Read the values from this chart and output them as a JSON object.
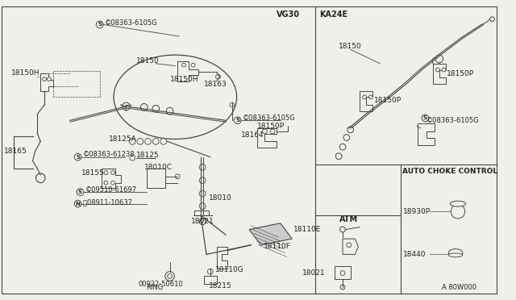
{
  "bg_color": "#f0f0eb",
  "line_color": "#444444",
  "text_color": "#222222",
  "vg30_label": "VG30",
  "ka24e_label": "KA24E",
  "auto_choke_label": "AUTO CHOKE CONTROL",
  "atm_label": "ATM",
  "ref_label": "A 80W000",
  "labels": {
    "s08363_6105g_top": "©08363-6105G",
    "18150_main": "18150",
    "18150H_inner": "18150H",
    "18163": "18163",
    "s08363_6105g_mid": "©08363-6105G",
    "18150H_left": "18150H",
    "18165": "18165",
    "18125A": "18125A",
    "s08363_61238": "©08363-61238",
    "18125": "18125",
    "18155": "18155",
    "18010C": "18010C",
    "s09510_61697": "©09510-61697",
    "n08911_10637": "Ⓞ0​8911-10637",
    "18021_main": "18021",
    "18110G": "18110G",
    "18110F": "18110F",
    "18215": "18215",
    "00922_50610": "00922-50610",
    "ring": "RING",
    "18010": "18010",
    "18150P_main": "18150P",
    "18164": "18164",
    "ka24_18150": "18150",
    "ka24_18150P_left": "18150P",
    "ka24_18150P_right": "18150P",
    "ka24_s08363": "©08363-6105G",
    "18110E": "18110E",
    "18021_atm": "18021",
    "18930P": "18930P",
    "18440": "18440"
  }
}
